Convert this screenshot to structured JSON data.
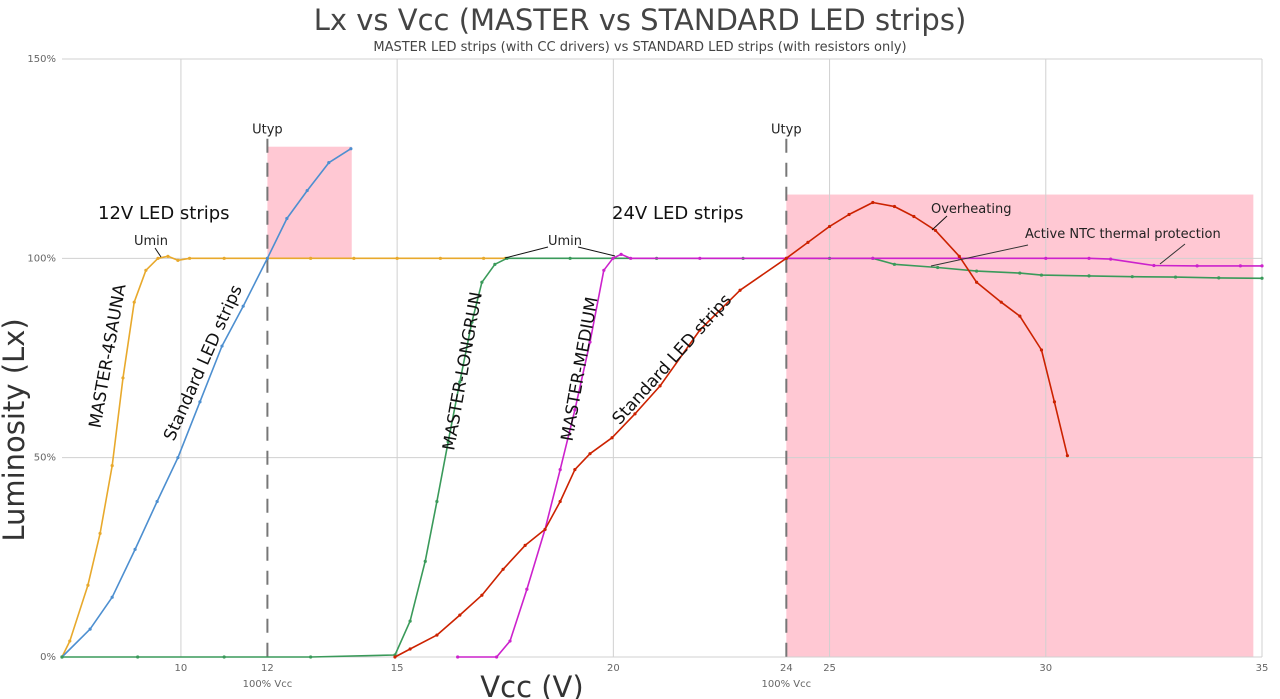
{
  "chart_data": {
    "type": "line",
    "title": "Lx vs Vcc (MASTER vs STANDARD LED strips)",
    "subtitle": "MASTER LED strips (with CC drivers) vs STANDARD LED strips (with resistors only)",
    "xlabel": "Vcc (V)",
    "ylabel": "Luminosity (Lx)",
    "xlim": [
      7.25,
      35
    ],
    "ylim": [
      0,
      150
    ],
    "grid": true,
    "x_ticks": [
      "10",
      "12",
      "15",
      "20",
      "24",
      "25",
      "30",
      "35"
    ],
    "x_tick_values": [
      10,
      12,
      15,
      20,
      24,
      25,
      30,
      35
    ],
    "x_sublabels": [
      {
        "x": 12,
        "text": "100% Vcc"
      },
      {
        "x": 24,
        "text": "100% Vcc"
      }
    ],
    "y_ticks": [
      {
        "value": 0,
        "label": "0%"
      },
      {
        "value": 50,
        "label": "50%"
      },
      {
        "value": 100,
        "label": "100%"
      },
      {
        "value": 150,
        "label": "150%"
      }
    ],
    "shaded_regions": [
      {
        "x": [
          12,
          13.95
        ],
        "y": [
          100,
          128
        ],
        "color": "#ffc8d3"
      },
      {
        "x": [
          24,
          34.8
        ],
        "y": [
          0,
          116
        ],
        "color": "#ffc8d3"
      }
    ],
    "reference_lines": [
      {
        "x": 12,
        "label": "Utyp"
      },
      {
        "x": 24,
        "label": "Utyp"
      }
    ],
    "series": [
      {
        "name": "MASTER-4SAUNA",
        "color": "#e8a92c",
        "x": [
          7.25,
          7.43,
          7.85,
          8.13,
          8.41,
          8.66,
          8.92,
          9.19,
          9.47,
          9.7,
          9.93,
          10.2,
          11,
          12,
          13,
          14,
          15,
          16,
          17,
          17.5
        ],
        "y": [
          0,
          4,
          18,
          31,
          48,
          70,
          89,
          97,
          100,
          100.5,
          99.5,
          100,
          100,
          100,
          100,
          100,
          100,
          100,
          100,
          100
        ]
      },
      {
        "name": "Standard LED strips",
        "color": "#4d8fd0",
        "x": [
          7.25,
          7.9,
          8.41,
          8.94,
          9.45,
          9.93,
          10.44,
          10.95,
          11.44,
          12,
          12.45,
          12.92,
          13.42,
          13.93
        ],
        "y": [
          0,
          7,
          15,
          27,
          39,
          50,
          64,
          78,
          88,
          100,
          110,
          117,
          124,
          127.5
        ]
      },
      {
        "name": "MASTER-LONGRUN",
        "color": "#3a9a5a",
        "x": [
          7.25,
          9,
          11,
          13,
          14.95,
          15.3,
          15.65,
          15.92,
          16.18,
          16.45,
          16.73,
          16.96,
          17.26,
          17.54,
          19,
          21,
          23,
          24,
          25,
          26,
          26.5,
          27.5,
          28.4,
          29.4,
          29.9,
          31,
          32,
          33,
          34,
          35
        ],
        "y": [
          0,
          0,
          0,
          0,
          0.5,
          9,
          24,
          39,
          54,
          69,
          84,
          94,
          98.5,
          100,
          100,
          100,
          100,
          100,
          100,
          100,
          98.5,
          97.7,
          96.8,
          96.3,
          95.8,
          95.6,
          95.4,
          95.3,
          95.1,
          95
        ]
      },
      {
        "name": "MASTER-MEDIUM",
        "color": "#cc22cc",
        "x": [
          16.4,
          17.3,
          17.61,
          18.0,
          18.42,
          18.77,
          19.11,
          19.46,
          19.78,
          19.99,
          20.18,
          20.4,
          22,
          24,
          26,
          28,
          30,
          31,
          31.5,
          32.5,
          33.5,
          34.5,
          35
        ],
        "y": [
          0,
          0,
          4,
          17,
          32,
          47,
          62,
          79,
          97,
          100,
          101,
          100,
          100,
          100,
          100,
          100,
          100,
          100,
          99.8,
          98.2,
          98.1,
          98.1,
          98.1
        ]
      },
      {
        "name": "Standard LED strips",
        "color": "#cc2200",
        "x": [
          14.95,
          15.3,
          15.92,
          16.45,
          16.96,
          17.45,
          17.96,
          18.42,
          18.77,
          19.11,
          19.46,
          19.97,
          20.5,
          21.08,
          22.0,
          22.93,
          24,
          24.5,
          25.0,
          25.45,
          26.0,
          26.5,
          26.95,
          27.45,
          28.0,
          28.4,
          28.97,
          29.4,
          29.9,
          30.2,
          30.5
        ],
        "y": [
          0,
          2,
          5.5,
          10.5,
          15.5,
          22,
          28,
          32,
          39,
          47,
          51,
          55,
          61,
          68,
          82,
          92,
          100,
          104,
          108,
          111,
          114,
          113,
          110.5,
          107,
          100.5,
          94,
          89,
          85.5,
          77,
          64,
          50.5
        ]
      }
    ],
    "annotations": {
      "group_12v": "12V LED strips",
      "group_24v": "24V LED strips",
      "umin_12v": "Umin",
      "umin_24v": "Umin",
      "overheating": "Overheating",
      "ntc": "Active NTC thermal protection"
    }
  }
}
